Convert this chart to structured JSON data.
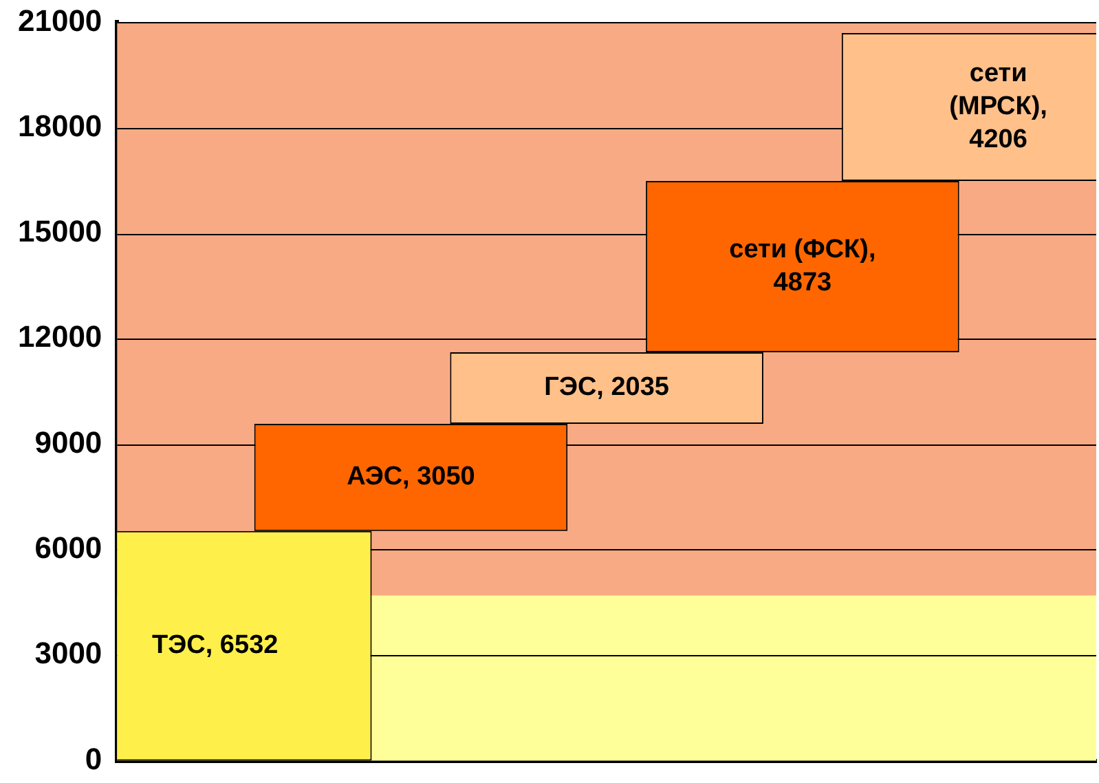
{
  "chart_data": {
    "type": "bar",
    "categories": [
      null,
      null,
      null,
      null,
      null
    ],
    "values": [
      6532,
      3050,
      2035,
      4873,
      4206
    ],
    "base": [
      0,
      6532,
      9582,
      11617,
      16490
    ],
    "colors": [
      "#ffef4a",
      "#ff6600",
      "#ffc08a",
      "#ff6600",
      "#ffc08a"
    ],
    "value_labels": [
      "ТЭС, 6532",
      "АЭС, 3050",
      "ГЭС, 2035",
      "сети (ФСК), 4873",
      "сети (МРСК), 4206"
    ],
    "ylim": [
      0,
      21000
    ],
    "yticks": [
      0,
      3000,
      6000,
      9000,
      12000,
      15000,
      18000,
      21000
    ],
    "bands": [
      {
        "axis": "y",
        "from": 0,
        "to": 4700,
        "color": "#ffff99"
      },
      {
        "axis": "y",
        "from": 4700,
        "to": 21000,
        "color": "#f8aa84"
      }
    ],
    "grid": "y",
    "tick_labels": "y",
    "legend": false
  }
}
